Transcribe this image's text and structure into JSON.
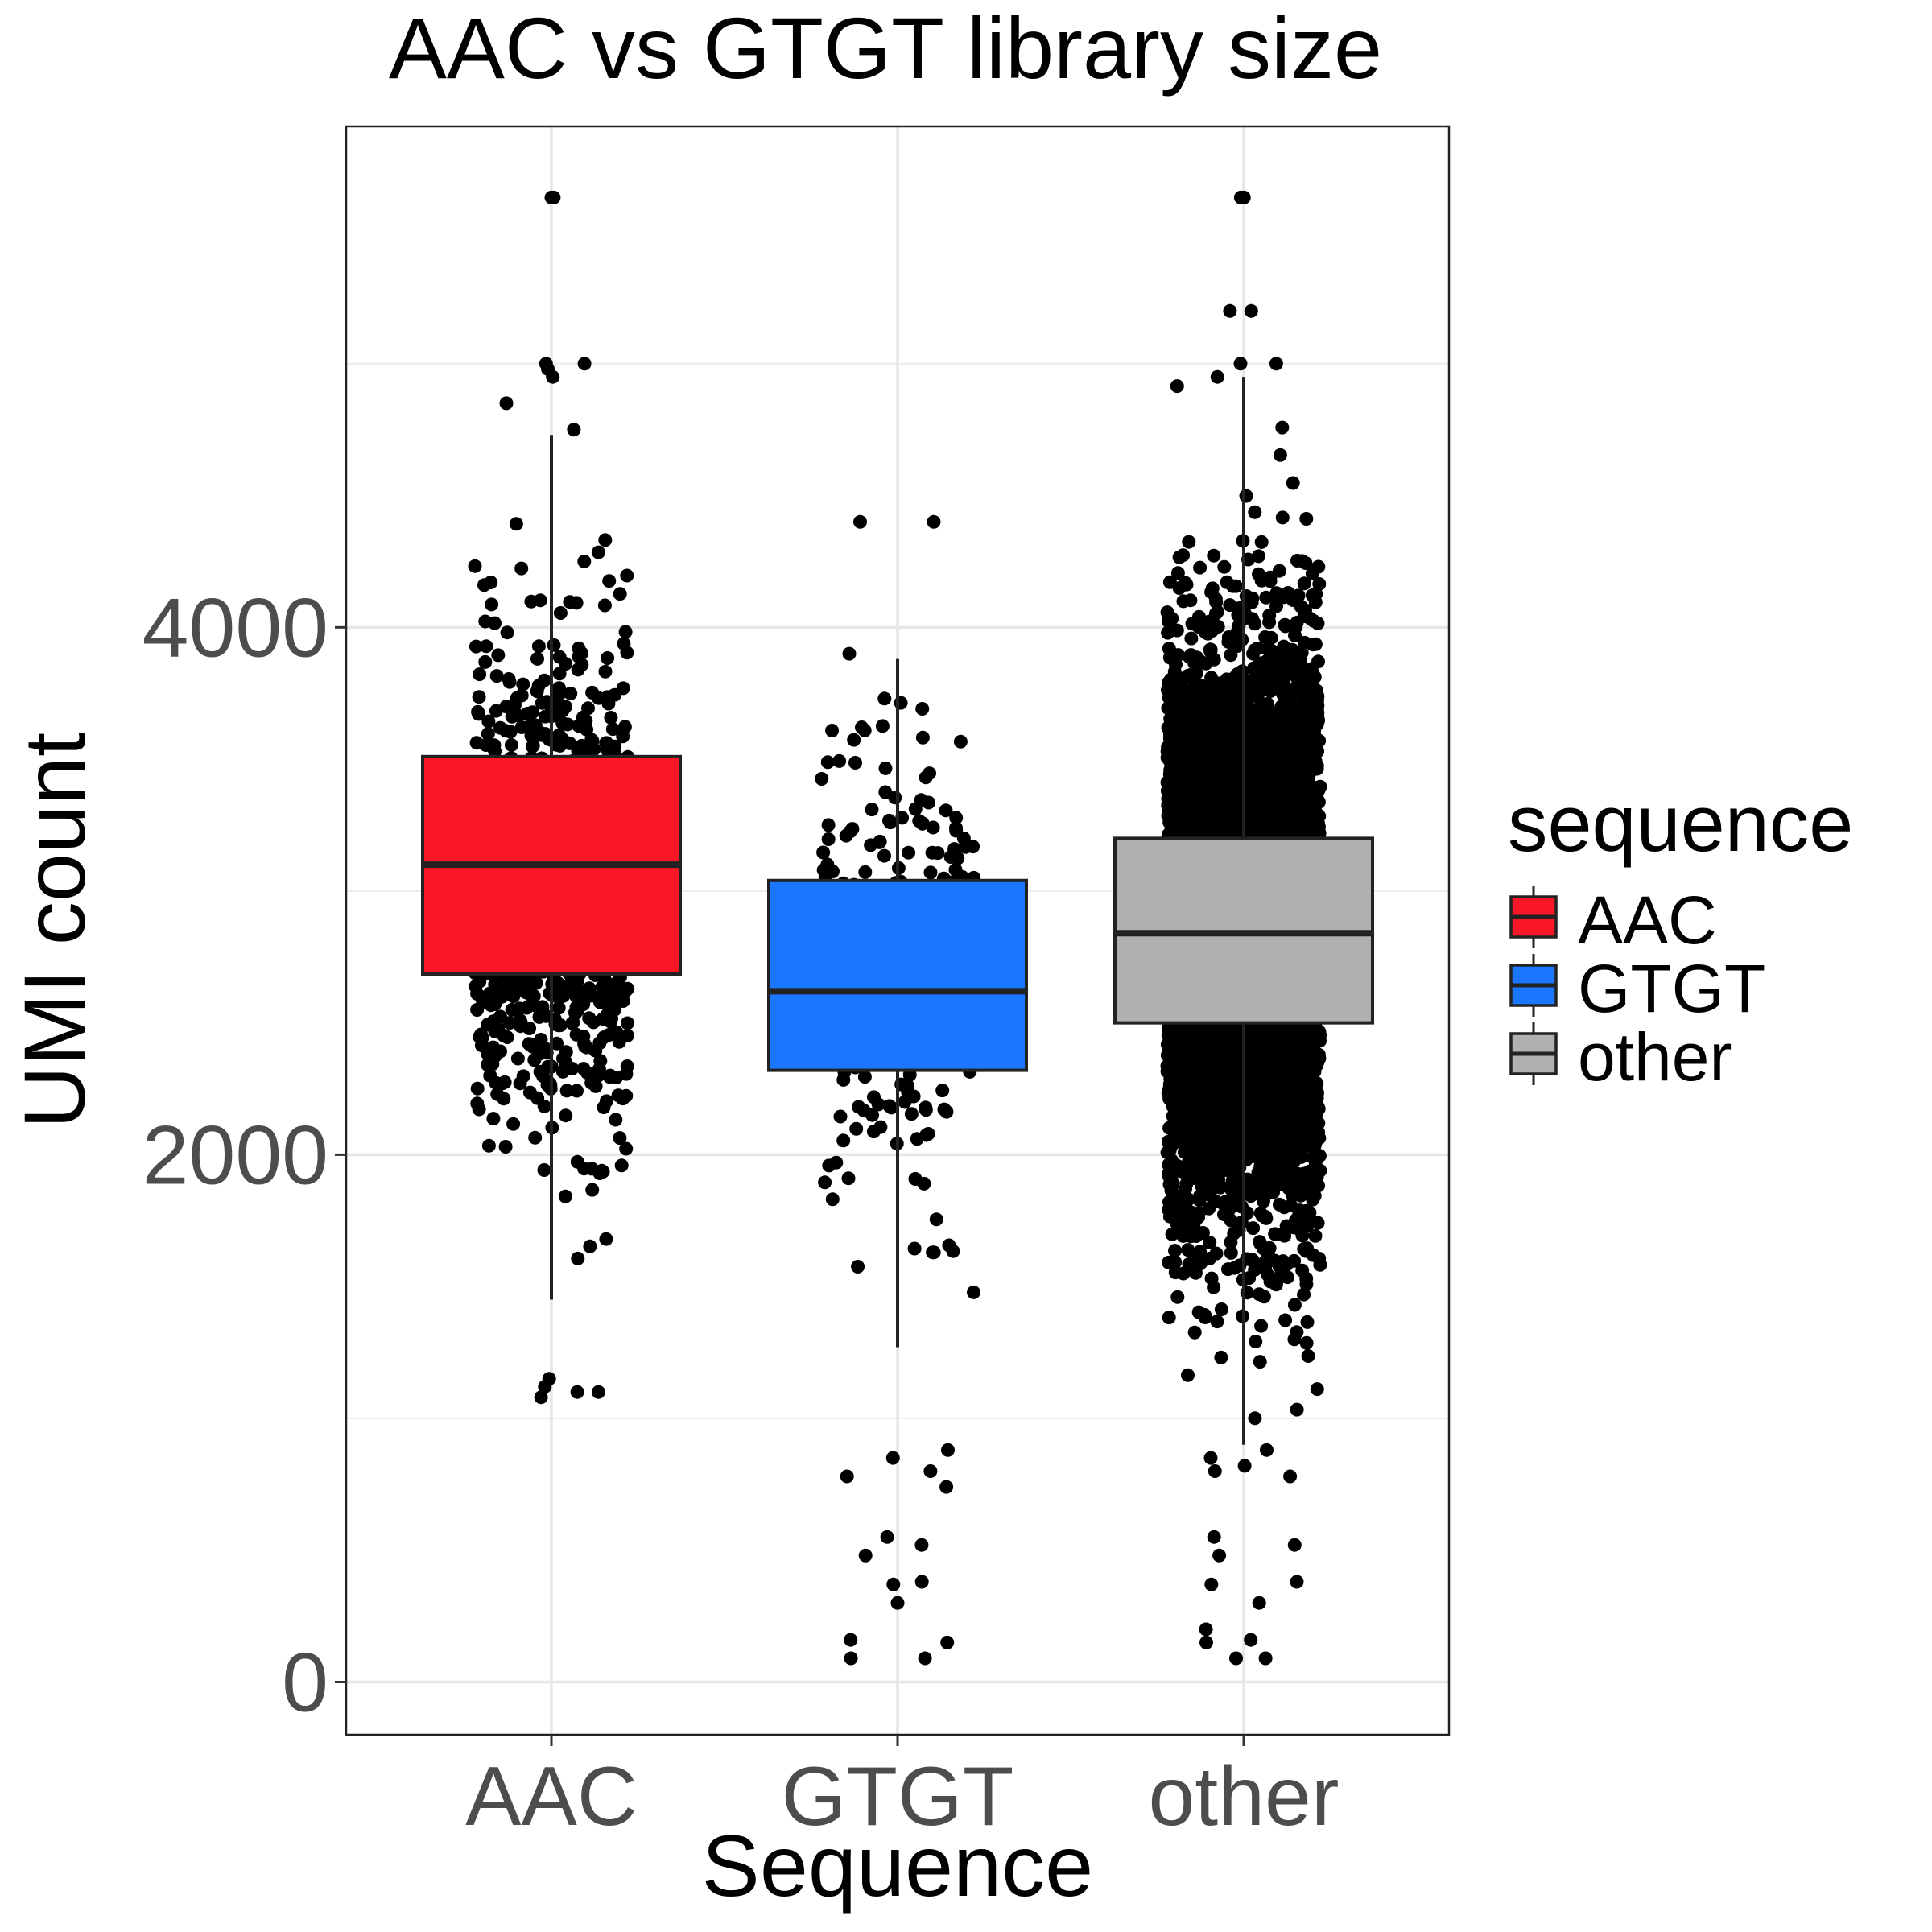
{
  "chart_data": {
    "type": "boxplot",
    "title": "AAC vs GTGT library size",
    "xlabel": "Sequence",
    "ylabel": "UMI count",
    "categories": [
      "AAC",
      "GTGT",
      "other"
    ],
    "ylim": [
      -200,
      5900
    ],
    "yticks": [
      0,
      2000,
      4000
    ],
    "ytick_labels": [
      "0",
      "2000",
      "4000"
    ],
    "grid": true,
    "legend": {
      "title": "sequence",
      "position": "right",
      "entries": [
        "AAC",
        "GTGT",
        "other"
      ]
    },
    "colors": {
      "AAC": "#fc1727",
      "GTGT": "#1b77ff",
      "other": "#b0b0b0",
      "points": "#000000",
      "box_outline": "#222222"
    },
    "series": [
      {
        "name": "AAC",
        "box": {
          "whisker_low": 1450,
          "q1": 2685,
          "median": 3100,
          "q3": 3510,
          "whisker_high": 4730
        },
        "points": {
          "count": 900,
          "center": 3050,
          "spread": 480,
          "min": 1070,
          "max": 5630,
          "seed": 11
        },
        "outliers": [
          5630,
          5630,
          5000,
          5000,
          4980,
          4950,
          4850,
          4750,
          1080,
          1100,
          1120,
          1100,
          1150
        ]
      },
      {
        "name": "GTGT",
        "box": {
          "whisker_low": 1270,
          "q1": 2320,
          "median": 2620,
          "q3": 3040,
          "whisker_high": 3880
        },
        "points": {
          "count": 300,
          "center": 2700,
          "spread": 420,
          "min": 80,
          "max": 4400,
          "seed": 23
        },
        "outliers": [
          4400,
          4400,
          3900,
          880,
          850,
          800,
          780,
          740,
          550,
          520,
          480,
          380,
          370,
          300,
          160,
          150,
          90,
          90
        ]
      },
      {
        "name": "other",
        "box": {
          "whisker_low": 900,
          "q1": 2500,
          "median": 2840,
          "q3": 3200,
          "whisker_high": 4950
        },
        "points": {
          "count": 6000,
          "center": 2850,
          "spread": 520,
          "min": 80,
          "max": 5630,
          "seed": 37
        },
        "outliers": [
          5630,
          5630,
          5200,
          5200,
          5000,
          5000,
          4950,
          880,
          850,
          820,
          800,
          780,
          550,
          520,
          480,
          380,
          370,
          300,
          200,
          160,
          150,
          90,
          90
        ]
      }
    ]
  }
}
